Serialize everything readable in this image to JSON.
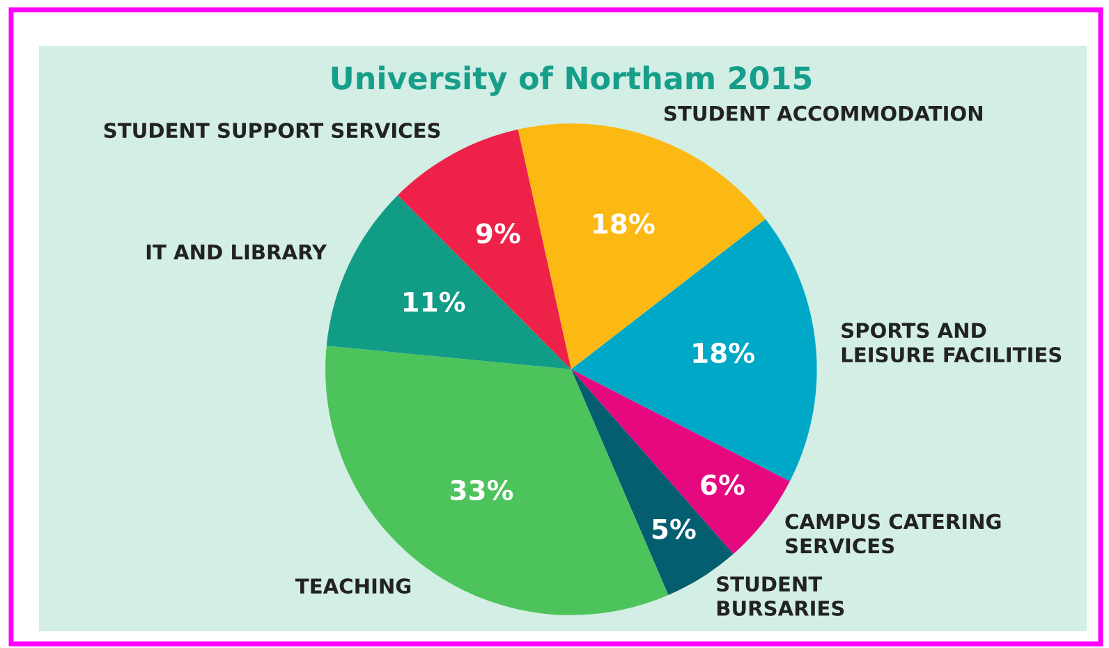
{
  "chart_data": {
    "type": "pie",
    "title": "University of Northam 2015",
    "categories": [
      "STUDENT ACCOMMODATION",
      "SPORTS AND\nLEISURE FACILITIES",
      "CAMPUS CATERING\nSERVICES",
      "STUDENT\nBURSARIES",
      "TEACHING",
      "IT AND LIBRARY",
      "STUDENT SUPPORT SERVICES"
    ],
    "values": [
      18,
      18,
      6,
      5,
      33,
      11,
      9
    ],
    "value_labels": [
      "18%",
      "18%",
      "6%",
      "5%",
      "33%",
      "11%",
      "9%"
    ],
    "colors": [
      "#fdb913",
      "#00a8c8",
      "#e5087e",
      "#035e70",
      "#4dc35b",
      "#119c86",
      "#ee2148"
    ]
  }
}
